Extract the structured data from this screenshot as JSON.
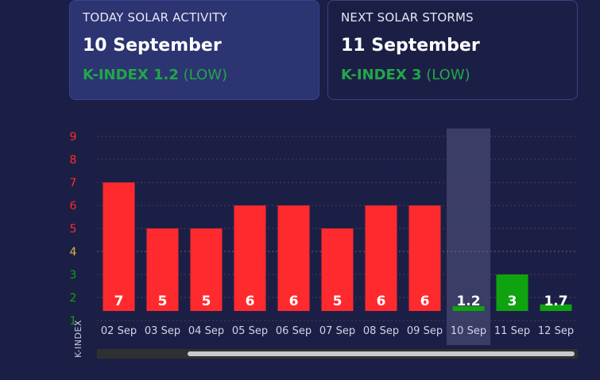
{
  "today": {
    "label": "TODAY SOLAR ACTIVITY",
    "date": "10 September",
    "kindex_prefix": "K-INDEX 1.2",
    "level": "(LOW)"
  },
  "next": {
    "label": "NEXT SOLAR STORMS",
    "date": "11 September",
    "kindex_prefix": "K-INDEX 3",
    "level": "(LOW)"
  },
  "colors": {
    "red": "#ff2a2e",
    "green": "#0fa30f",
    "yellow": "#e3b341",
    "highlight": "#3a3d66",
    "background": "#1c1f45"
  },
  "chart_data": {
    "type": "bar",
    "ylabel": "K-INDEX",
    "categories": [
      "02 Sep",
      "03 Sep",
      "04 Sep",
      "05 Sep",
      "06 Sep",
      "07 Sep",
      "08 Sep",
      "09 Sep",
      "10 Sep",
      "11 Sep",
      "12 Sep"
    ],
    "values": [
      7,
      5,
      5,
      6,
      6,
      5,
      6,
      6,
      1.2,
      3,
      1.7
    ],
    "value_labels": [
      "7",
      "5",
      "5",
      "6",
      "6",
      "5",
      "6",
      "6",
      "1.2",
      "3",
      "1.7"
    ],
    "ylim": [
      1,
      9
    ],
    "yticks": [
      1,
      2,
      3,
      4,
      5,
      6,
      7,
      8,
      9
    ],
    "highlight_category": "10 Sep",
    "grid": true
  }
}
